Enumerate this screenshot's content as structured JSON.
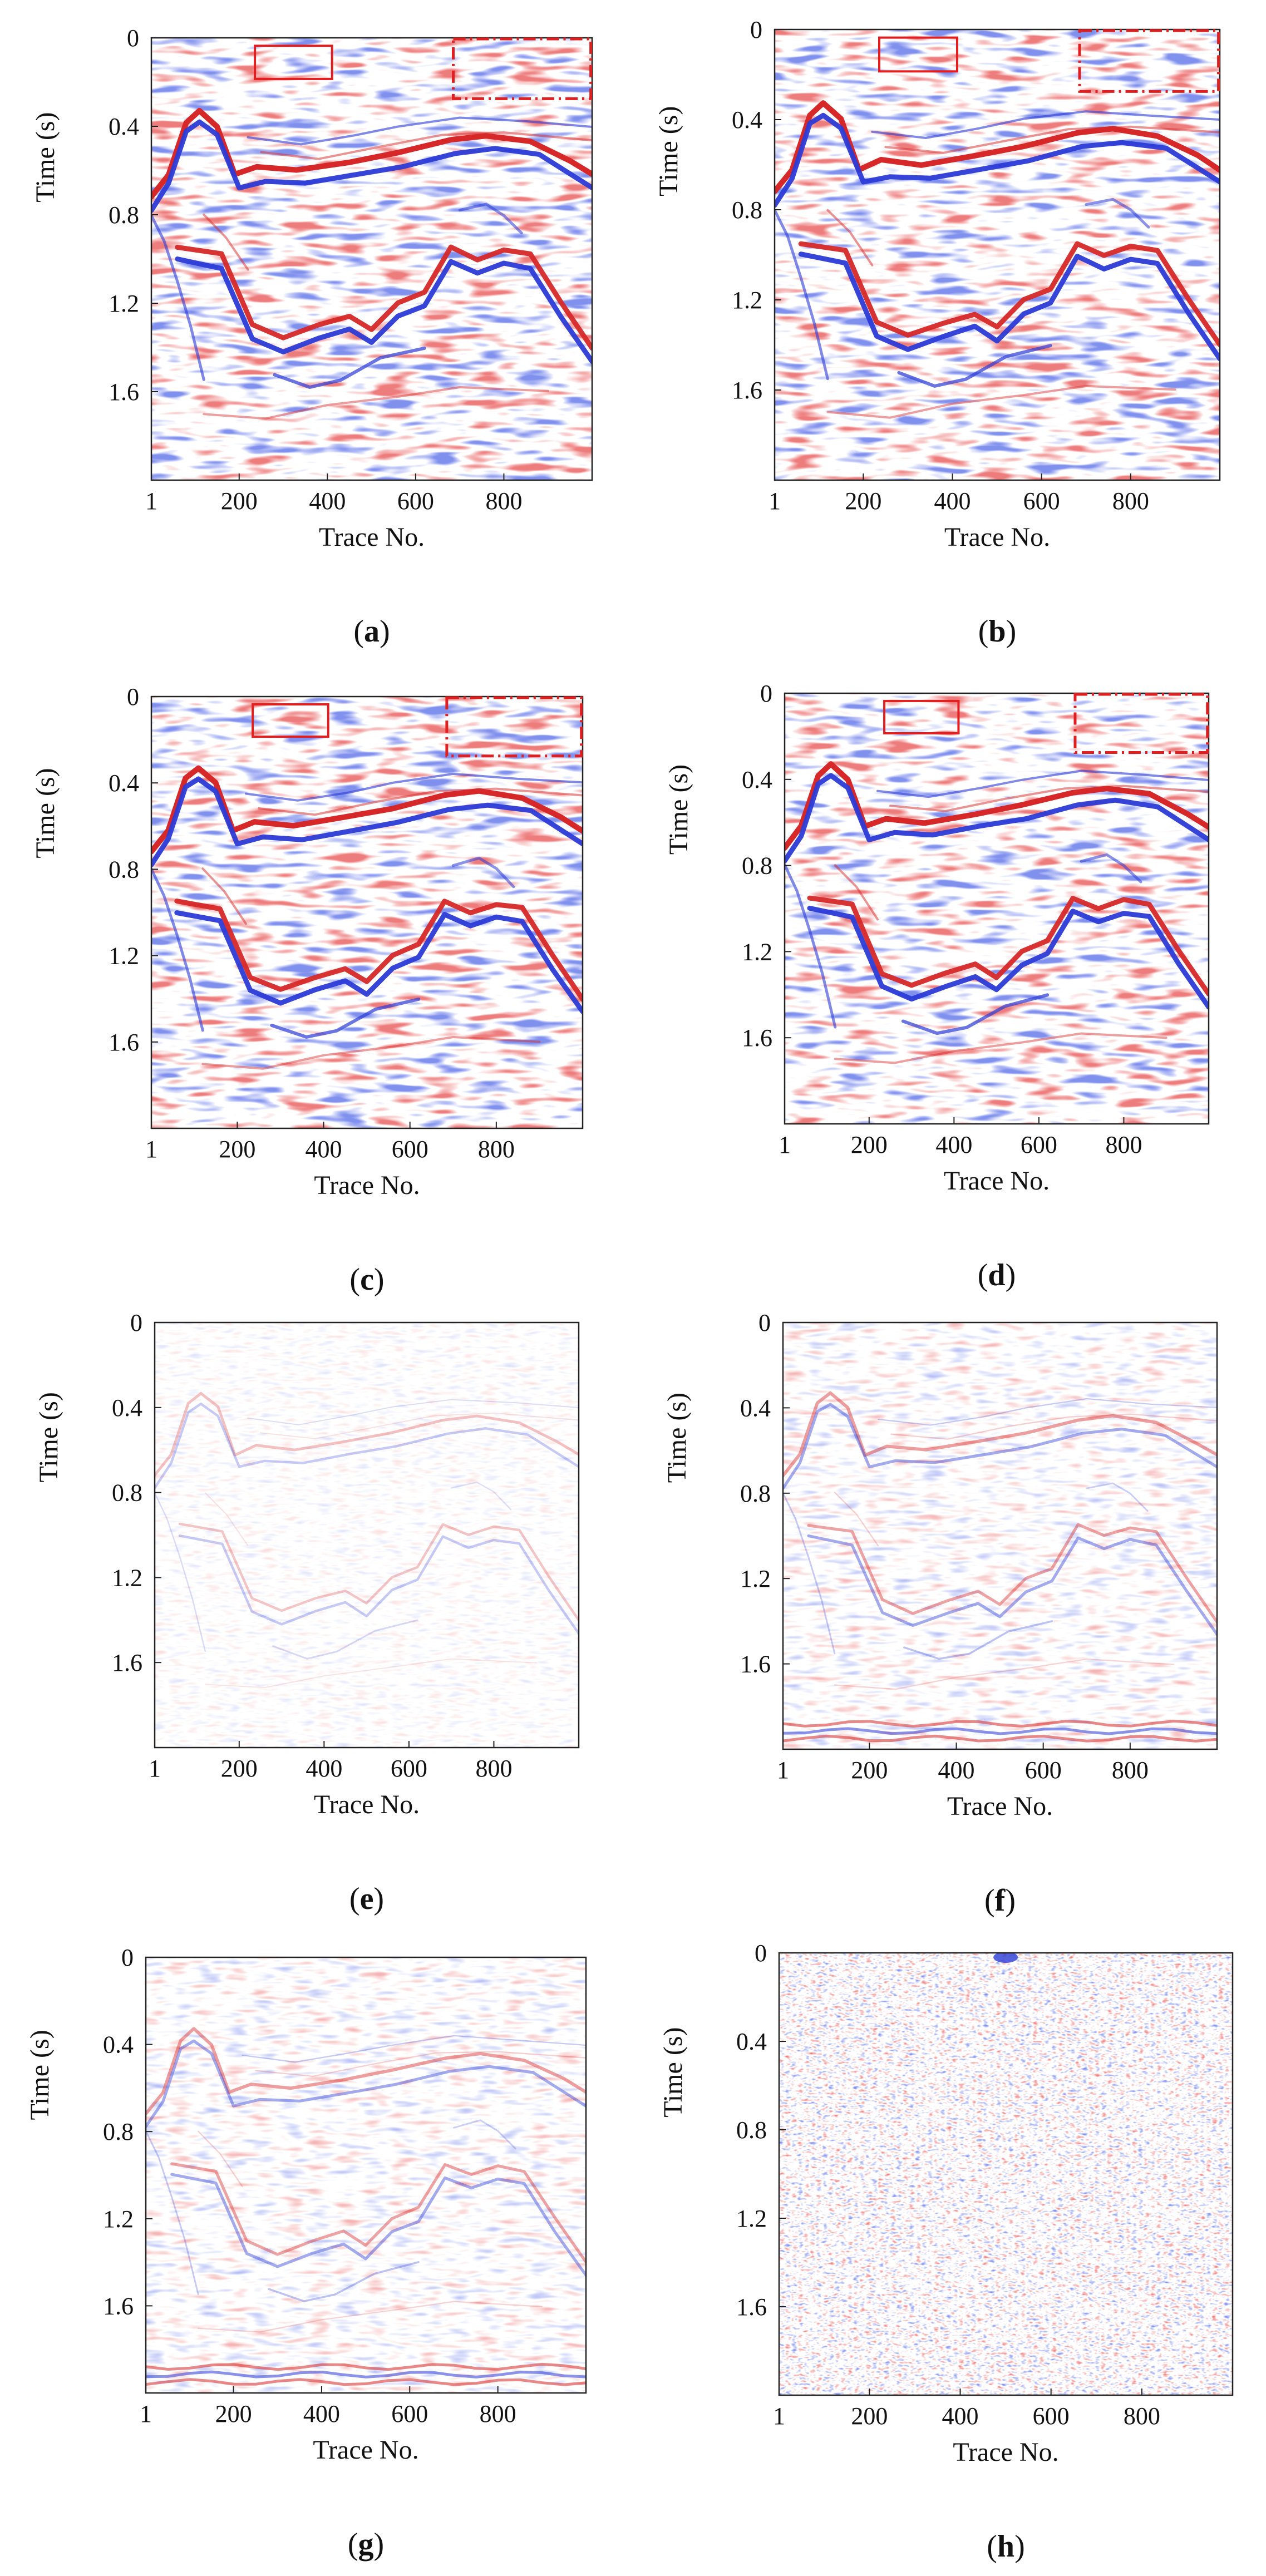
{
  "figure": {
    "description_colors": {
      "positive": "#d62828",
      "negative": "#2b3bd6",
      "background": "#ffffff",
      "annotation": "#e02020"
    }
  },
  "chart_data": [
    {
      "type": "heatmap",
      "panel": "a",
      "caption_open": "(",
      "caption_letter": "a",
      "caption_close": ")",
      "xlabel": "Trace No.",
      "ylabel": "Time (s)",
      "x_ticks": [
        "1",
        "200",
        "400",
        "600",
        "800"
      ],
      "x_tick_values": [
        1,
        200,
        400,
        600,
        800
      ],
      "y_ticks": [
        "0",
        "0.4",
        "0.8",
        "1.2",
        "1.6"
      ],
      "y_tick_values": [
        0,
        0.4,
        0.8,
        1.2,
        1.6
      ],
      "xlim": [
        1,
        1000
      ],
      "ylim": [
        0,
        2.0
      ],
      "amplitude": 1.0,
      "annotations": true
    },
    {
      "type": "heatmap",
      "panel": "b",
      "caption_open": "(",
      "caption_letter": "b",
      "caption_close": ")",
      "xlabel": "Trace No.",
      "ylabel": "Time (s)",
      "x_ticks": [
        "1",
        "200",
        "400",
        "600",
        "800"
      ],
      "x_tick_values": [
        1,
        200,
        400,
        600,
        800
      ],
      "y_ticks": [
        "0",
        "0.4",
        "0.8",
        "1.2",
        "1.6"
      ],
      "y_tick_values": [
        0,
        0.4,
        0.8,
        1.2,
        1.6
      ],
      "xlim": [
        1,
        1000
      ],
      "ylim": [
        0,
        2.0
      ],
      "amplitude": 1.0,
      "annotations": true
    },
    {
      "type": "heatmap",
      "panel": "c",
      "caption_open": "(",
      "caption_letter": "c",
      "caption_close": ")",
      "xlabel": "Trace No.",
      "ylabel": "Time (s)",
      "x_ticks": [
        "1",
        "200",
        "400",
        "600",
        "800"
      ],
      "x_tick_values": [
        1,
        200,
        400,
        600,
        800
      ],
      "y_ticks": [
        "0",
        "0.4",
        "0.8",
        "1.2",
        "1.6"
      ],
      "y_tick_values": [
        0,
        0.4,
        0.8,
        1.2,
        1.6
      ],
      "xlim": [
        1,
        1000
      ],
      "ylim": [
        0,
        2.0
      ],
      "amplitude": 1.0,
      "annotations": true
    },
    {
      "type": "heatmap",
      "panel": "d",
      "caption_open": "(",
      "caption_letter": "d",
      "caption_close": ")",
      "xlabel": "Trace No.",
      "ylabel": "Time (s)",
      "x_ticks": [
        "1",
        "200",
        "400",
        "600",
        "800"
      ],
      "x_tick_values": [
        1,
        200,
        400,
        600,
        800
      ],
      "y_ticks": [
        "0",
        "0.4",
        "0.8",
        "1.2",
        "1.6"
      ],
      "y_tick_values": [
        0,
        0.4,
        0.8,
        1.2,
        1.6
      ],
      "xlim": [
        1,
        1000
      ],
      "ylim": [
        0,
        2.0
      ],
      "amplitude": 1.0,
      "annotations": true
    },
    {
      "type": "heatmap",
      "panel": "e",
      "caption_open": "(",
      "caption_letter": "e",
      "caption_close": ")",
      "xlabel": "Trace No.",
      "ylabel": "Time (s)",
      "x_ticks": [
        "1",
        "200",
        "400",
        "600",
        "800"
      ],
      "x_tick_values": [
        1,
        200,
        400,
        600,
        800
      ],
      "y_ticks": [
        "0",
        "0.4",
        "0.8",
        "1.2",
        "1.6"
      ],
      "y_tick_values": [
        0,
        0.4,
        0.8,
        1.2,
        1.6
      ],
      "xlim": [
        1,
        1000
      ],
      "ylim": [
        0,
        2.0
      ],
      "amplitude": 0.15,
      "annotations": false
    },
    {
      "type": "heatmap",
      "panel": "f",
      "caption_open": "(",
      "caption_letter": "f",
      "caption_close": ")",
      "xlabel": "Trace No.",
      "ylabel": "Time (s)",
      "x_ticks": [
        "1",
        "200",
        "400",
        "600",
        "800"
      ],
      "x_tick_values": [
        1,
        200,
        400,
        600,
        800
      ],
      "y_ticks": [
        "0",
        "0.4",
        "0.8",
        "1.2",
        "1.6"
      ],
      "y_tick_values": [
        0,
        0.4,
        0.8,
        1.2,
        1.6
      ],
      "xlim": [
        1,
        1000
      ],
      "ylim": [
        0,
        2.0
      ],
      "amplitude": 0.3,
      "annotations": false
    },
    {
      "type": "heatmap",
      "panel": "g",
      "caption_open": "(",
      "caption_letter": "g",
      "caption_close": ")",
      "xlabel": "Trace No.",
      "ylabel": "Time (s)",
      "x_ticks": [
        "1",
        "200",
        "400",
        "600",
        "800"
      ],
      "x_tick_values": [
        1,
        200,
        400,
        600,
        800
      ],
      "y_ticks": [
        "0",
        "0.4",
        "0.8",
        "1.2",
        "1.6"
      ],
      "y_tick_values": [
        0,
        0.4,
        0.8,
        1.2,
        1.6
      ],
      "xlim": [
        1,
        1000
      ],
      "ylim": [
        0,
        2.0
      ],
      "amplitude": 0.3,
      "annotations": false
    },
    {
      "type": "heatmap",
      "panel": "h",
      "caption_open": "(",
      "caption_letter": "h",
      "caption_close": ")",
      "xlabel": "Trace No.",
      "ylabel": "Time (s)",
      "x_ticks": [
        "1",
        "200",
        "400",
        "600",
        "800"
      ],
      "x_tick_values": [
        1,
        200,
        400,
        600,
        800
      ],
      "y_ticks": [
        "0",
        "0.4",
        "0.8",
        "1.2",
        "1.6"
      ],
      "y_tick_values": [
        0,
        0.4,
        0.8,
        1.2,
        1.6
      ],
      "xlim": [
        1,
        1000
      ],
      "ylim": [
        0,
        2.0
      ],
      "amplitude": 0.4,
      "annotations": false
    }
  ]
}
